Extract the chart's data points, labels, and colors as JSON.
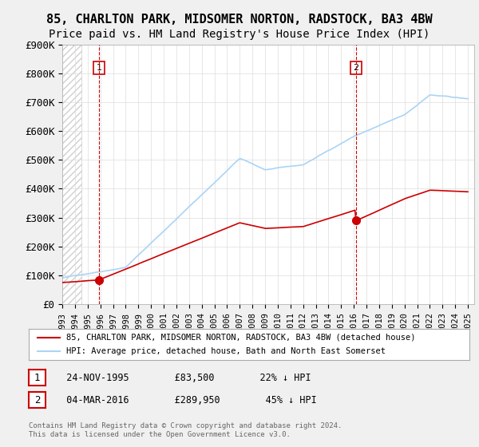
{
  "title1": "85, CHARLTON PARK, MIDSOMER NORTON, RADSTOCK, BA3 4BW",
  "title2": "Price paid vs. HM Land Registry's House Price Index (HPI)",
  "xlabel": "",
  "ylabel": "",
  "ylim": [
    0,
    900000
  ],
  "yticks": [
    0,
    100000,
    200000,
    300000,
    400000,
    500000,
    600000,
    700000,
    800000,
    900000
  ],
  "ytick_labels": [
    "£0",
    "£100K",
    "£200K",
    "£300K",
    "£400K",
    "£500K",
    "£600K",
    "£700K",
    "£800K",
    "£900K"
  ],
  "xlim_start": 1993,
  "xlim_end": 2025.5,
  "transaction1_date": 1995.9,
  "transaction1_price": 83500,
  "transaction1_label": "1",
  "transaction2_date": 2016.17,
  "transaction2_price": 289950,
  "transaction2_label": "2",
  "hpi_color": "#aad4f5",
  "price_color": "#cc0000",
  "vline_color": "#cc0000",
  "marker_color": "#cc0000",
  "background_color": "#f0f0f0",
  "plot_bg_color": "#ffffff",
  "legend_entry1": "85, CHARLTON PARK, MIDSOMER NORTON, RADSTOCK, BA3 4BW (detached house)",
  "legend_entry2": "HPI: Average price, detached house, Bath and North East Somerset",
  "table_row1": [
    "1",
    "24-NOV-1995",
    "£83,500",
    "22% ↓ HPI"
  ],
  "table_row2": [
    "2",
    "04-MAR-2016",
    "£289,950",
    "45% ↓ HPI"
  ],
  "footer": "Contains HM Land Registry data © Crown copyright and database right 2024.\nThis data is licensed under the Open Government Licence v3.0.",
  "title_fontsize": 11,
  "subtitle_fontsize": 10,
  "tick_fontsize": 9
}
